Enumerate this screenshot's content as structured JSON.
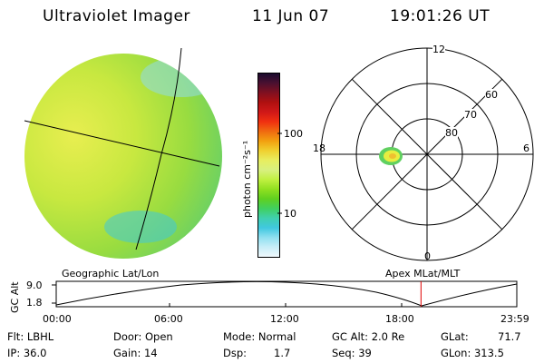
{
  "header": {
    "instrument": "Ultraviolet Imager",
    "date": "11 Jun 07",
    "time": "19:01:26 UT"
  },
  "colorbar": {
    "unit_label": "photon cm⁻²s⁻¹",
    "tick_labels": [
      "100",
      "10"
    ],
    "colors": [
      "#1a0a2e",
      "#4a1030",
      "#801020",
      "#b01010",
      "#d01818",
      "#f03010",
      "#f06a10",
      "#f2a010",
      "#f0d030",
      "#e8ee60",
      "#d8f080",
      "#c0f040",
      "#90e020",
      "#60d020",
      "#40d060",
      "#40d0b0",
      "#40c8e0",
      "#90e0f0",
      "#c8eef8",
      "#f0f8fc"
    ]
  },
  "polar": {
    "clock_labels": {
      "top": "12",
      "left": "18",
      "right": "6",
      "bottom": "0"
    },
    "lat_labels": [
      "60",
      "70",
      "80"
    ]
  },
  "orbit": {
    "left_label": "Geographic Lat/Lon",
    "right_label": "Apex MLat/MLT",
    "axis_label": "GC Alt",
    "y_ticks": [
      "9.0",
      "1.8"
    ],
    "x_ticks": [
      "00:00",
      "06:00",
      "12:00",
      "18:00",
      "23:59"
    ],
    "current_time_fraction": 0.792
  },
  "footer": {
    "flt": "Flt: LBHL",
    "ip": "IP: 36.0",
    "door": "Door: Open",
    "gain": "Gain: 14",
    "mode": "Mode: Normal",
    "dsp_label": "Dsp:",
    "dsp_value": "1.7",
    "gc_alt": "GC Alt: 2.0 Re",
    "seq": "Seq: 39",
    "glat": "GLat:",
    "glat_value": "71.7",
    "glon": "GLon: 313.5"
  }
}
